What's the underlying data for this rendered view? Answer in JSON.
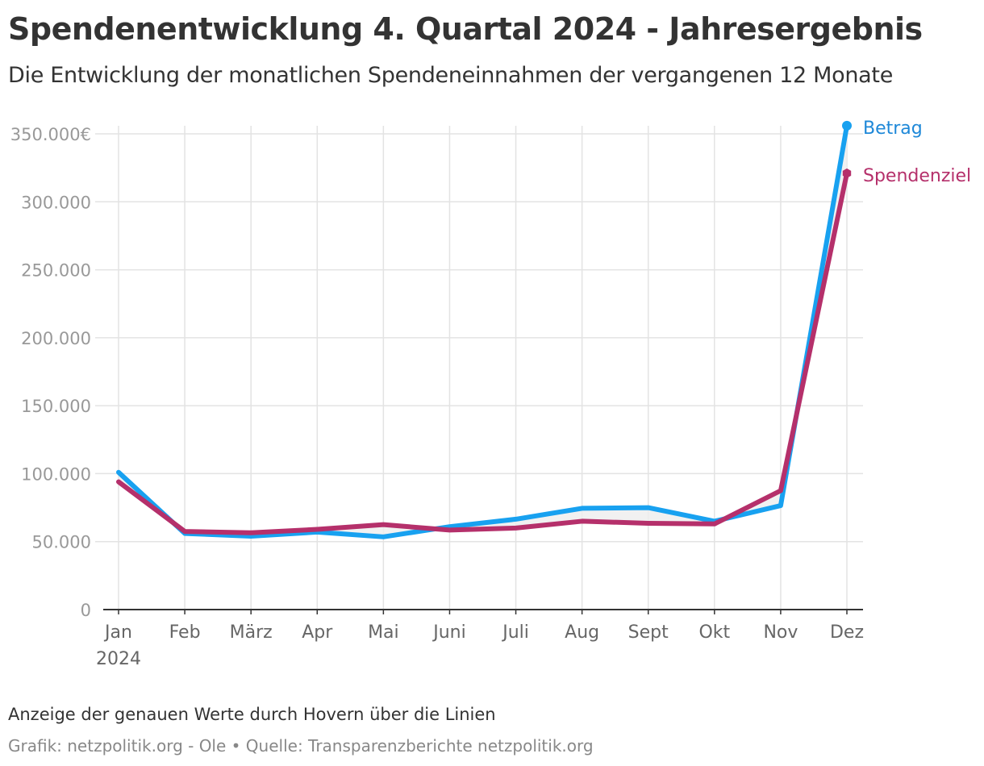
{
  "header": {
    "title": "Spendenentwicklung 4. Quartal 2024 - Jahresergebnis",
    "subtitle": "Die Entwicklung der monatlichen Spendeneinnahmen der vergangenen 12 Monate"
  },
  "footer": {
    "note": "Anzeige der genauen Werte durch Hovern über die Linien",
    "credit": "Grafik: netzpolitik.org - Ole • Quelle: Transparenzberichte netzpolitik.org"
  },
  "chart_data": {
    "type": "line",
    "categories": [
      "Jan",
      "Feb",
      "März",
      "Apr",
      "Mai",
      "Juni",
      "Juli",
      "Aug",
      "Sept",
      "Okt",
      "Nov",
      "Dez"
    ],
    "year_label": "2024",
    "y_ticks": [
      0,
      50000,
      100000,
      150000,
      200000,
      250000,
      300000,
      350000
    ],
    "y_tick_labels": [
      "0",
      "50.000",
      "100.000",
      "150.000",
      "200.000",
      "250.000",
      "300.000",
      "350.000€"
    ],
    "ylim": [
      0,
      350000
    ],
    "grid": true,
    "series": [
      {
        "name": "Betrag",
        "color": "#18a1f0",
        "label_color": "#1e88d8",
        "values": [
          101000,
          56000,
          54000,
          57000,
          53500,
          61000,
          66500,
          74500,
          75000,
          65000,
          76500,
          356000
        ]
      },
      {
        "name": "Spendenziel",
        "color": "#b5306b",
        "label_color": "#b5306b",
        "values": [
          94000,
          57500,
          56500,
          59000,
          62500,
          58500,
          60000,
          65000,
          63500,
          63000,
          87500,
          321000
        ]
      }
    ]
  }
}
